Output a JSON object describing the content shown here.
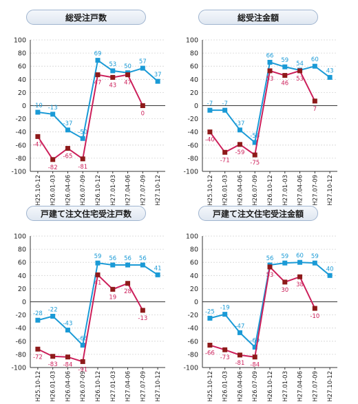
{
  "colors": {
    "blue": "#1a9ad6",
    "red": "#cc1f5a",
    "marker_red": "#8e1a1a"
  },
  "chart_data": [
    {
      "type": "line",
      "title": "総受注戸数",
      "categories": [
        "H25.10-12",
        "H26.01-03",
        "H26.04-06",
        "H26.07-09",
        "H26.10-12",
        "H27.01-03",
        "H27.04-06",
        "H27.07-09",
        "H27.10-12"
      ],
      "ylim": [
        -100,
        100
      ],
      "yticks": [
        100,
        80,
        60,
        40,
        20,
        0,
        -20,
        -40,
        -60,
        -80,
        -100
      ],
      "series": [
        {
          "values": [
            -10,
            -13,
            -37,
            -50,
            69,
            53,
            50,
            57,
            37
          ],
          "labels": [
            "-10",
            "-13",
            "-37",
            "-50",
            "69",
            "53",
            "50",
            "57",
            "37"
          ]
        },
        {
          "values": [
            -47,
            -82,
            -65,
            -81,
            47,
            43,
            47,
            0,
            null
          ],
          "labels": [
            "-47",
            "-82",
            "-65",
            "-81",
            "47",
            "43",
            "47",
            "0",
            ""
          ]
        }
      ]
    },
    {
      "type": "line",
      "title": "総受注金額",
      "categories": [
        "H25.10-12",
        "H26.01-03",
        "H26.04-06",
        "H26.07-09",
        "H26.10-12",
        "H27.01-03",
        "H27.04-06",
        "H27.07-09",
        "H27.10-12"
      ],
      "ylim": [
        -100,
        100
      ],
      "yticks": [
        100,
        80,
        60,
        40,
        20,
        0,
        -20,
        -40,
        -60,
        -80,
        -100
      ],
      "series": [
        {
          "values": [
            -7,
            -7,
            -37,
            -56,
            66,
            59,
            54,
            60,
            43
          ],
          "labels": [
            "-7",
            "-7",
            "-37",
            "-56",
            "66",
            "59",
            "54",
            "60",
            "43"
          ]
        },
        {
          "values": [
            -40,
            -71,
            -59,
            -75,
            53,
            46,
            53,
            7,
            null
          ],
          "labels": [
            "-40",
            "-71",
            "-59",
            "-75",
            "53",
            "46",
            "53",
            "7",
            ""
          ]
        }
      ]
    },
    {
      "type": "line",
      "title": "戸建て注文住宅受注戸数",
      "categories": [
        "H25.10-12",
        "H26.01-03",
        "H26.04-06",
        "H26.07-09",
        "H26.10-12",
        "H27.01-03",
        "H27.04-06",
        "H27.07-09",
        "H27.10-12"
      ],
      "ylim": [
        -100,
        100
      ],
      "yticks": [
        100,
        80,
        60,
        40,
        20,
        0,
        -20,
        -40,
        -60,
        -80,
        -100
      ],
      "series": [
        {
          "values": [
            -28,
            -22,
            -43,
            -66,
            59,
            56,
            56,
            56,
            41
          ],
          "labels": [
            "-28",
            "-22",
            "-43",
            "-66",
            "59",
            "56",
            "56",
            "56",
            "41"
          ]
        },
        {
          "values": [
            -72,
            -83,
            -84,
            -91,
            41,
            19,
            28,
            -13,
            null
          ],
          "labels": [
            "-72",
            "-83",
            "-84",
            "-91",
            "41",
            "19",
            "28",
            "-13",
            ""
          ]
        }
      ]
    },
    {
      "type": "line",
      "title": "戸建て注文住宅受注金額",
      "categories": [
        "H25.10-12",
        "H26.01-03",
        "H26.04-06",
        "H26.07-09",
        "H26.10-12",
        "H27.01-03",
        "H27.04-06",
        "H27.07-09",
        "H27.10-12"
      ],
      "ylim": [
        -100,
        100
      ],
      "yticks": [
        100,
        80,
        60,
        40,
        20,
        0,
        -20,
        -40,
        -60,
        -80,
        -100
      ],
      "series": [
        {
          "values": [
            -25,
            -19,
            -47,
            -69,
            56,
            59,
            60,
            59,
            40
          ],
          "labels": [
            "-25",
            "-19",
            "-47",
            "-69",
            "56",
            "59",
            "60",
            "59",
            "40"
          ]
        },
        {
          "values": [
            -66,
            -73,
            -81,
            -84,
            53,
            30,
            38,
            -10,
            null
          ],
          "labels": [
            "-66",
            "-73",
            "-81",
            "-84",
            "53",
            "30",
            "38",
            "-10",
            ""
          ]
        }
      ]
    }
  ]
}
